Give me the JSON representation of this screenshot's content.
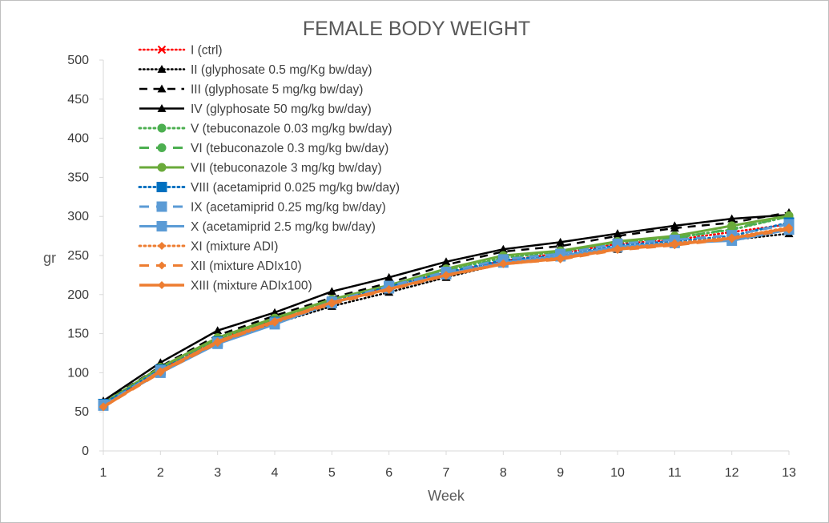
{
  "chart_data": {
    "type": "line",
    "title": "FEMALE BODY WEIGHT",
    "xlabel": "Week",
    "ylabel": "gr",
    "x": [
      1,
      2,
      3,
      4,
      5,
      6,
      7,
      8,
      9,
      10,
      11,
      12,
      13
    ],
    "xlim": [
      1,
      13
    ],
    "ylim": [
      0,
      500
    ],
    "yticks": [
      0,
      50,
      100,
      150,
      200,
      250,
      300,
      350,
      400,
      450,
      500
    ],
    "grid": false,
    "legend": "top-left",
    "series": [
      {
        "name": "I (ctrl)",
        "color": "#ff0000",
        "dash": "dotted",
        "marker": "x",
        "width": 2.5,
        "values": [
          59,
          105,
          143,
          168,
          190,
          210,
          228,
          243,
          253,
          265,
          270,
          280,
          290
        ]
      },
      {
        "name": "II (glyphosate 0.5 mg/Kg bw/day)",
        "color": "#000000",
        "dash": "dotted",
        "marker": "triangle",
        "width": 2.5,
        "values": [
          57,
          102,
          138,
          163,
          185,
          203,
          222,
          240,
          247,
          258,
          265,
          270,
          278
        ]
      },
      {
        "name": "III (glyphosate 5 mg/kg bw/day)",
        "color": "#000000",
        "dash": "dashed",
        "marker": "triangle",
        "width": 2.5,
        "values": [
          62,
          108,
          148,
          173,
          196,
          215,
          238,
          255,
          262,
          275,
          285,
          292,
          305
        ]
      },
      {
        "name": "IV (glyphosate 50 mg/kg bw/day)",
        "color": "#000000",
        "dash": "solid",
        "marker": "triangle",
        "width": 2.5,
        "values": [
          64,
          113,
          154,
          177,
          204,
          222,
          242,
          258,
          267,
          278,
          288,
          297,
          302
        ]
      },
      {
        "name": "V (tebuconazole 0.03 mg/kg bw/day)",
        "color": "#4caf50",
        "dash": "dotted",
        "marker": "circle",
        "width": 3,
        "values": [
          60,
          106,
          142,
          168,
          193,
          211,
          231,
          247,
          255,
          267,
          273,
          283,
          300
        ]
      },
      {
        "name": "VI (tebuconazole 0.3 mg/kg bw/day)",
        "color": "#4caf50",
        "dash": "dashed",
        "marker": "circle",
        "width": 3,
        "values": [
          60,
          105,
          141,
          167,
          192,
          210,
          230,
          246,
          253,
          266,
          272,
          284,
          300
        ]
      },
      {
        "name": "VII (tebuconazole 3 mg/kg bw/day)",
        "color": "#6aaa3a",
        "dash": "solid",
        "marker": "circle",
        "width": 3,
        "values": [
          61,
          107,
          145,
          170,
          194,
          212,
          233,
          250,
          256,
          268,
          275,
          288,
          301
        ]
      },
      {
        "name": "VIII (acetamiprid 0.025 mg/kg bw/day)",
        "color": "#0070c0",
        "dash": "dotted",
        "marker": "square",
        "width": 3,
        "values": [
          60,
          104,
          140,
          165,
          190,
          210,
          228,
          244,
          250,
          263,
          268,
          275,
          292
        ]
      },
      {
        "name": "IX (acetamiprid 0.25 mg/kg bw/day)",
        "color": "#5b9bd5",
        "dash": "dashed",
        "marker": "square",
        "width": 3,
        "values": [
          59,
          103,
          139,
          164,
          191,
          211,
          229,
          245,
          252,
          265,
          270,
          276,
          290
        ]
      },
      {
        "name": "X (acetamiprid 2.5 mg/kg bw/day)",
        "color": "#5b9bd5",
        "dash": "solid",
        "marker": "square",
        "width": 3,
        "values": [
          58,
          100,
          137,
          162,
          189,
          208,
          226,
          241,
          249,
          261,
          266,
          269,
          283
        ]
      },
      {
        "name": "XI (mixture ADI)",
        "color": "#ed7d31",
        "dash": "dotted",
        "marker": "diamond",
        "width": 3,
        "values": [
          57,
          101,
          139,
          164,
          190,
          207,
          225,
          240,
          247,
          259,
          266,
          273,
          286
        ]
      },
      {
        "name": "XII (mixture ADIx10)",
        "color": "#ed7d31",
        "dash": "dashed",
        "marker": "diamond",
        "width": 3,
        "values": [
          56,
          100,
          138,
          165,
          188,
          206,
          224,
          239,
          245,
          257,
          263,
          271,
          283
        ]
      },
      {
        "name": "XIII (mixture ADIx100)",
        "color": "#ed7d31",
        "dash": "solid",
        "marker": "diamond",
        "width": 3.5,
        "values": [
          56,
          102,
          140,
          166,
          190,
          207,
          225,
          239,
          246,
          258,
          264,
          272,
          285
        ]
      }
    ]
  }
}
